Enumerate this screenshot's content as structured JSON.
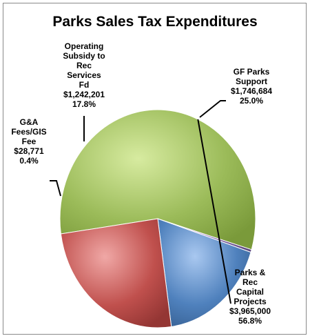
{
  "chart_data": {
    "type": "pie",
    "title": "Parks Sales Tax Expenditures",
    "slices": [
      {
        "label_lines": [
          "Parks &",
          "Rec",
          "Capital",
          "Projects"
        ],
        "amount": "$3,965,000",
        "percent": "56.8%",
        "value": 56.8,
        "color": "#9bbb59"
      },
      {
        "label_lines": [
          "G&A",
          "Fees/GIS",
          "Fee"
        ],
        "amount": "$28,771",
        "percent": "0.4%",
        "value": 0.4,
        "color": "#8064a2"
      },
      {
        "label_lines": [
          "Operating",
          "Subsidy to",
          "Rec",
          "Services",
          "Fd"
        ],
        "amount": "$1,242,201",
        "percent": "17.8%",
        "value": 17.8,
        "color": "#4f81bd"
      },
      {
        "label_lines": [
          "GF Parks",
          "Support"
        ],
        "amount": "$1,746,684",
        "percent": "25.0%",
        "value": 25.0,
        "color": "#c0504d"
      }
    ]
  }
}
